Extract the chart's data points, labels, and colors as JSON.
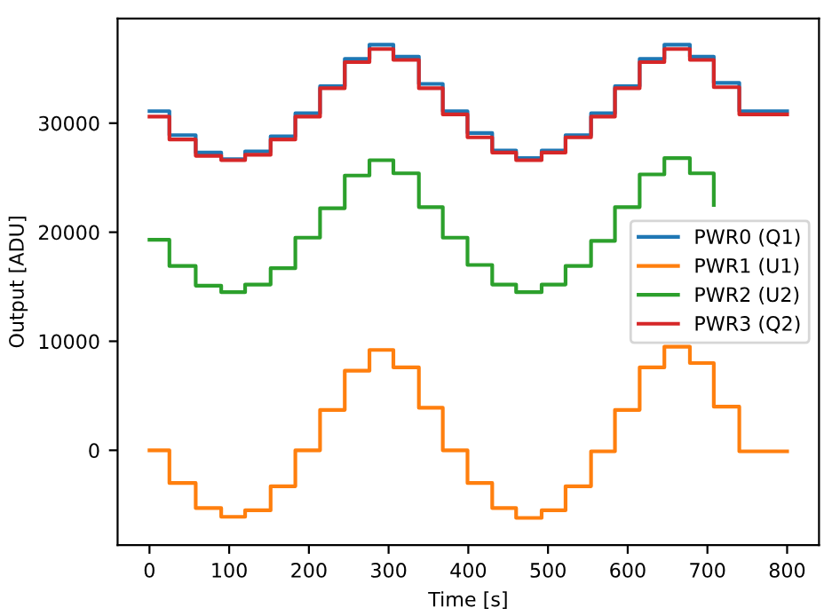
{
  "chart_data": {
    "type": "step",
    "xlabel": "Time [s]",
    "ylabel": "Output [ADU]",
    "x": [
      0,
      25,
      58,
      90,
      120,
      152,
      183,
      214,
      245,
      276,
      306,
      338,
      368,
      399,
      430,
      460,
      492,
      522,
      554,
      584,
      615,
      646,
      678,
      708,
      740,
      800
    ],
    "series": [
      {
        "name": "PWR0 (Q1)",
        "color": "#1f77b4",
        "values": [
          31100,
          28900,
          27300,
          26700,
          27400,
          28800,
          30900,
          33400,
          35900,
          37200,
          36100,
          33600,
          31100,
          29100,
          27500,
          26800,
          27500,
          28900,
          30900,
          33400,
          35900,
          37200,
          36100,
          33700,
          31100,
          31100
        ]
      },
      {
        "name": "PWR1 (U1)",
        "color": "#ff7f0e",
        "values": [
          0,
          -3000,
          -5300,
          -6100,
          -5500,
          -3300,
          0,
          3700,
          7300,
          9200,
          7600,
          3900,
          0,
          -3000,
          -5300,
          -6200,
          -5500,
          -3300,
          -100,
          3700,
          7600,
          9500,
          8000,
          4000,
          -100,
          -100
        ]
      },
      {
        "name": "PWR2 (U2)",
        "color": "#2ca02c",
        "values": [
          19300,
          16900,
          15100,
          14500,
          15200,
          16700,
          19500,
          22200,
          25200,
          26600,
          25400,
          22300,
          19500,
          17000,
          15200,
          14500,
          15200,
          16900,
          19200,
          22300,
          25300,
          26800,
          25400,
          22500,
          null,
          null
        ]
      },
      {
        "name": "PWR3 (Q2)",
        "color": "#d62728",
        "values": [
          30600,
          28500,
          27000,
          26600,
          27100,
          28500,
          30600,
          33200,
          35600,
          36800,
          35800,
          33200,
          30800,
          28700,
          27300,
          26600,
          27300,
          28700,
          30600,
          33200,
          35600,
          36800,
          35800,
          33300,
          30800,
          30800
        ]
      }
    ],
    "xlim": [
      -40,
      840
    ],
    "ylim": [
      -8700,
      39600
    ],
    "xticks": [
      0,
      100,
      200,
      300,
      400,
      500,
      600,
      700,
      800
    ],
    "yticks": [
      0,
      10000,
      20000,
      30000
    ],
    "grid": false,
    "legend": "center right",
    "marker": "none",
    "line_style": "solid"
  }
}
